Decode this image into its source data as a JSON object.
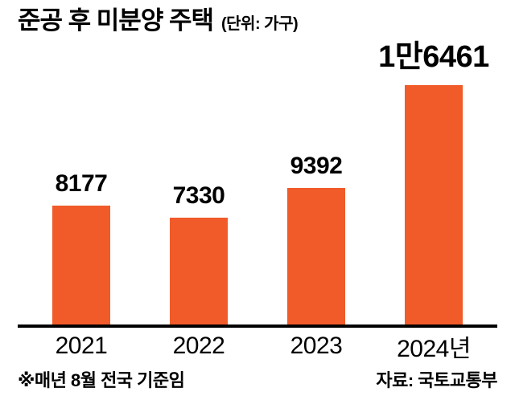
{
  "header": {
    "title": "준공 후 미분양 주택",
    "unit": "(단위: 가구)"
  },
  "chart_data": {
    "type": "bar",
    "title": "준공 후 미분양 주택",
    "unit_label": "(단위: 가구)",
    "categories": [
      "2021",
      "2022",
      "2023",
      "2024년"
    ],
    "values": [
      8177,
      7330,
      9392,
      16461
    ],
    "value_labels": [
      "8177",
      "7330",
      "9392",
      "1만6461"
    ],
    "emphasis": [
      false,
      false,
      false,
      true
    ],
    "xlabel": "",
    "ylabel": "",
    "ylim": [
      0,
      17000
    ],
    "grid": false,
    "legend": "none"
  },
  "footer": {
    "note": "※매년 8월 전국 기준임",
    "source": "자료: 국토교통부"
  },
  "colors": {
    "bar": "#F15A29",
    "text": "#000000",
    "background": "#FFFFFF"
  }
}
